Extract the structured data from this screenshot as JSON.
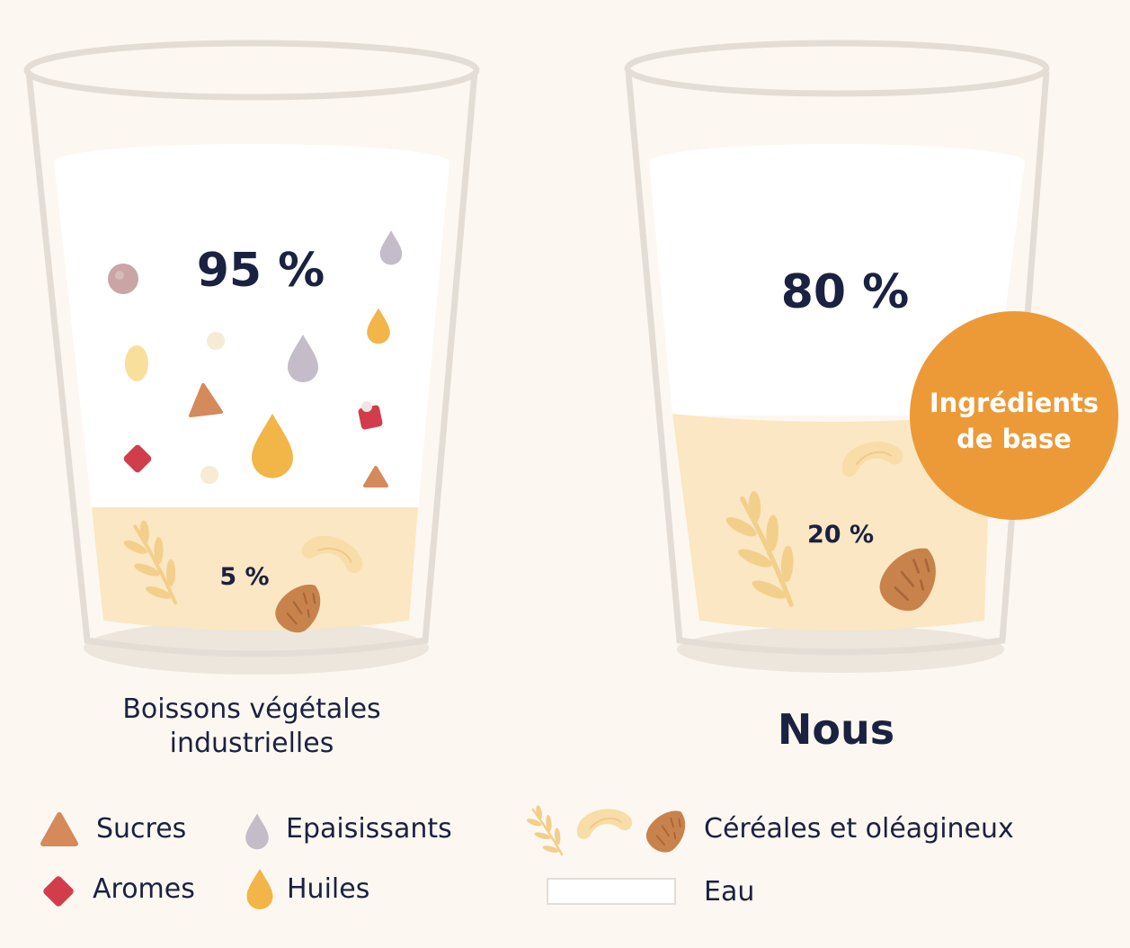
{
  "glasses": [
    {
      "caption": "Boissons végétales industrielles",
      "caption_lines": [
        "Boissons végétales",
        "industrielles"
      ],
      "top_percent": "95 %",
      "base_percent": "5 %",
      "base_fraction": 0.05
    },
    {
      "caption": "Nous",
      "top_percent": "80 %",
      "base_percent": "20 %",
      "base_fraction": 0.2
    }
  ],
  "badge": {
    "lines": [
      "Ingrédients",
      "de base"
    ]
  },
  "legend": {
    "sucres": "Sucres",
    "epaississants": "Epaisissants",
    "aromes": "Aromes",
    "huiles": "Huiles",
    "cereales": "Céréales et oléagineux",
    "eau": "Eau"
  },
  "colors": {
    "background": "#fcf8f1",
    "text": "#1b2140",
    "water": "#ffffff",
    "base_liquid": "#fbe7c3",
    "badge": "#ec9a38",
    "sucres": "#d58a5c",
    "epaississants": "#c5bcc9",
    "aromes": "#d23d4c",
    "huiles": "#f2b548",
    "almond": "#c8834c",
    "cashew": "#f8dda8"
  },
  "icons": [
    "triangle-icon",
    "drop-icon",
    "diamond-icon",
    "wheat-icon",
    "cashew-icon",
    "almond-icon"
  ]
}
